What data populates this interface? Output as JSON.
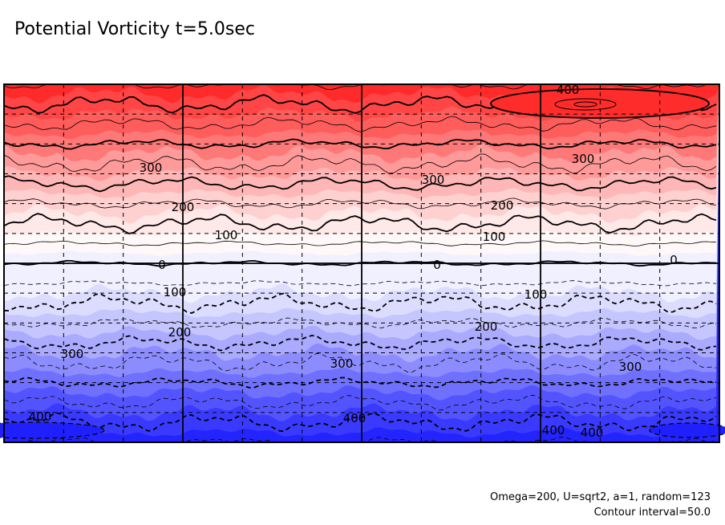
{
  "title": "Potential Vorticity t=5.0sec",
  "footer": {
    "params": "Omega=200, U=sqrt2, a=1, random=123",
    "interval": "Contour interval=50.0"
  },
  "chart_data": {
    "type": "heatmap",
    "title": "Potential Vorticity t=5.0sec",
    "value_range": [
      -450,
      450
    ],
    "contour_interval": 50,
    "grid": true,
    "colors": {
      "band_pos": [
        "#ffffff",
        "#ffe4e4",
        "#ffcccc",
        "#ffb0b0",
        "#ff9a9a",
        "#ff7a7a",
        "#ff6262",
        "#ff4a4a",
        "#ff2a2a"
      ],
      "band_neg": [
        "#ffffff",
        "#ececff",
        "#d6d6ff",
        "#c0c0ff",
        "#a6a6ff",
        "#8a8aff",
        "#6e6eff",
        "#4f4fff",
        "#2a2aff"
      ]
    },
    "bands": [
      {
        "value": 450,
        "color": "#ff2a2a"
      },
      {
        "value": 400,
        "color": "#ff4545"
      },
      {
        "value": 350,
        "color": "#ff5c5c"
      },
      {
        "value": 300,
        "color": "#ff7878"
      },
      {
        "value": 250,
        "color": "#ff9a9a"
      },
      {
        "value": 200,
        "color": "#ffb6b6"
      },
      {
        "value": 150,
        "color": "#ffd0d0"
      },
      {
        "value": 100,
        "color": "#ffe8e8"
      },
      {
        "value": 50,
        "color": "#fff8f8"
      },
      {
        "value": -50,
        "color": "#f0f0ff"
      },
      {
        "value": -100,
        "color": "#dcdcff"
      },
      {
        "value": -150,
        "color": "#c6c6ff"
      },
      {
        "value": -200,
        "color": "#aaaaff"
      },
      {
        "value": -250,
        "color": "#8c8cff"
      },
      {
        "value": -300,
        "color": "#7070ff"
      },
      {
        "value": -350,
        "color": "#5454ff"
      },
      {
        "value": -400,
        "color": "#3a3aff"
      },
      {
        "value": -450,
        "color": "#2424ff"
      }
    ],
    "contour_labels": [
      {
        "text": "400",
        "value": 400
      },
      {
        "text": "300",
        "value": 300
      },
      {
        "text": "300",
        "value": 300
      },
      {
        "text": "300",
        "value": 300
      },
      {
        "text": "200",
        "value": 200
      },
      {
        "text": "200",
        "value": 200
      },
      {
        "text": "100",
        "value": 100
      },
      {
        "text": "100",
        "value": 100
      },
      {
        "text": "0",
        "value": 0
      },
      {
        "text": "0",
        "value": 0
      },
      {
        "text": "0",
        "value": 0
      },
      {
        "text": "100",
        "value": -100
      },
      {
        "text": "100",
        "value": -100
      },
      {
        "text": "200",
        "value": -200
      },
      {
        "text": "200",
        "value": -200
      },
      {
        "text": "300",
        "value": -300
      },
      {
        "text": "300",
        "value": -300
      },
      {
        "text": "300",
        "value": -300
      },
      {
        "text": "400",
        "value": -400
      },
      {
        "text": "400",
        "value": -400
      },
      {
        "text": "400",
        "value": -400
      },
      {
        "text": "400",
        "value": -400
      }
    ]
  }
}
